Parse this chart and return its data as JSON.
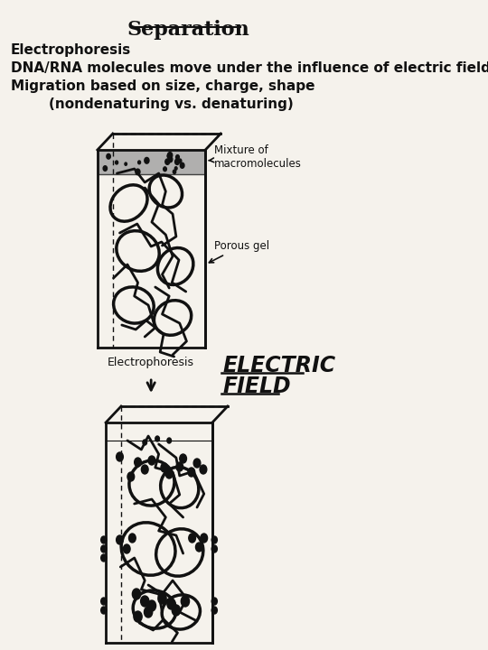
{
  "title": "Separation",
  "line1": "Electrophoresis",
  "line2": "DNA/RNA molecules move under the influence of electric field",
  "line3": "Migration based on size, charge, shape",
  "line4": "        (nondenaturing vs. denaturing)",
  "label_mixture": "Mixture of\nmacromolecules",
  "label_porous": "Porous gel",
  "label_electrophoresis": "Electrophoresis",
  "label_electric1": "ELECTRIC",
  "label_electric2": "FIELD",
  "bg_color": "#f5f2ec",
  "text_color": "#111111",
  "fig_width": 5.4,
  "fig_height": 7.2
}
